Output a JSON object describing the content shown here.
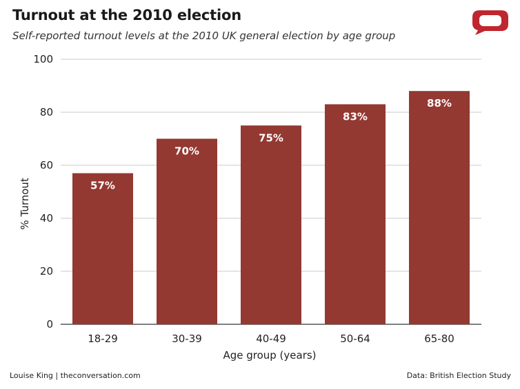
{
  "header": {
    "title": "Turnout at the 2010 election",
    "subtitle": "Self-reported turnout levels at the 2010 UK general election by age group"
  },
  "footer": {
    "credit": "Louise King | theconversation.com",
    "source": "Data: British Election Study"
  },
  "logo": {
    "icon": "speech-bubble-icon",
    "color": "#c0262e"
  },
  "chart_data": {
    "type": "bar",
    "categories": [
      "18-29",
      "30-39",
      "40-49",
      "50-64",
      "65-80"
    ],
    "values": [
      57,
      70,
      75,
      83,
      88
    ],
    "value_labels": [
      "57%",
      "70%",
      "75%",
      "83%",
      "88%"
    ],
    "xlabel": "Age group (years)",
    "ylabel": "% Turnout",
    "ylim": [
      0,
      100
    ],
    "yticks": [
      0,
      20,
      40,
      60,
      80,
      100
    ],
    "grid": true,
    "bar_color": "#943832",
    "grid_color": "#c8c8c8"
  }
}
